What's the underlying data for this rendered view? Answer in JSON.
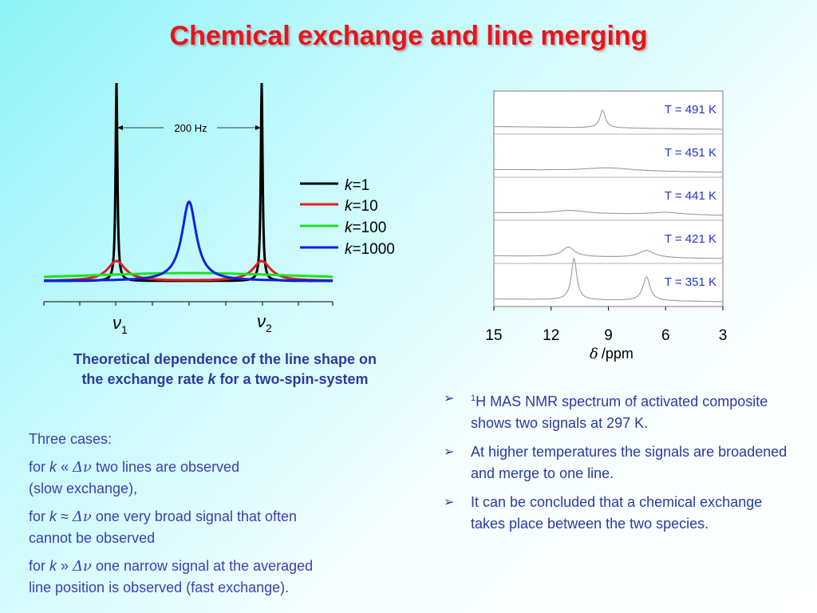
{
  "title": "Chemical exchange and line merging",
  "left_plot": {
    "dist_label": "200 Hz",
    "nu1": "ν",
    "nu1_sub": "1",
    "nu2": "ν",
    "nu2_sub": "2",
    "legend": [
      {
        "k": "k",
        "value": "=1",
        "color": "#000000"
      },
      {
        "k": "k",
        "value": "=10",
        "color": "#e02020"
      },
      {
        "k": "k",
        "value": "=100",
        "color": "#20e020"
      },
      {
        "k": "k",
        "value": "=1000",
        "color": "#1020e0"
      }
    ]
  },
  "caption": {
    "line1": "Theoretical dependence of the line shape on",
    "line2a": "the exchange rate ",
    "line2k": "k",
    "line2b": " for a two-spin-system"
  },
  "cases": {
    "header": "Three cases:",
    "c1a": "for ",
    "c1k": "k",
    "c1b": " « ",
    "c1dn": "Δν",
    "c1c": "  two lines are observed",
    "c1d": "(slow exchange),",
    "c2a": "for ",
    "c2k": "k",
    "c2b": " ≈ ",
    "c2dn": "Δν",
    "c2c": "  one very broad signal that often",
    "c2d": "cannot be observed",
    "c3a": "for ",
    "c3k": "k",
    "c3b": " » ",
    "c3dn": "Δν",
    "c3c": " one narrow signal at the averaged",
    "c3d": "line position is observed (fast exchange)."
  },
  "bullets": {
    "b1_sup": "1",
    "b1": "H MAS NMR spectrum of activated composite shows two signals at 297 K.",
    "b2": "At higher temperatures the signals are broadened and merge to one line.",
    "b3": "It can be concluded that a chemical exchange takes place between the two species."
  },
  "chart_data": [
    {
      "type": "line",
      "title": "",
      "xlabel": "",
      "ylabel": "",
      "x_tick_labels": [
        "ν1",
        "ν2"
      ],
      "annotations": [
        "200 Hz"
      ],
      "series": [
        {
          "name": "k=1",
          "color": "#000000",
          "positions": [
            -100,
            100
          ],
          "width": 3,
          "height": 100
        },
        {
          "name": "k=10",
          "color": "#e02020",
          "positions": [
            -100,
            100
          ],
          "width": 30,
          "height": 10
        },
        {
          "name": "k=100",
          "color": "#20e020",
          "positions": [
            0
          ],
          "width": 420,
          "height": 4
        },
        {
          "name": "k=1000",
          "color": "#1020e0",
          "positions": [
            0
          ],
          "width": 24,
          "height": 40
        }
      ],
      "legend_position": "right"
    },
    {
      "type": "line",
      "title": "",
      "xlabel_symbol": "δ",
      "xlabel": "/ppm",
      "x_tick_labels": [
        "15",
        "12",
        "9",
        "6",
        "3"
      ],
      "xlim": [
        15,
        3
      ],
      "series": [
        {
          "name": "T = 491 K",
          "peaks": [
            {
              "x": 9.3,
              "h": 22,
              "w": 0.35
            }
          ]
        },
        {
          "name": "T = 451 K",
          "peaks": [
            {
              "x": 9.0,
              "h": 4,
              "w": 3.0
            }
          ]
        },
        {
          "name": "T = 441 K",
          "peaks": [
            {
              "x": 11.0,
              "h": 4,
              "w": 2.0
            },
            {
              "x": 6.0,
              "h": 3,
              "w": 2.0
            }
          ]
        },
        {
          "name": "T = 421 K",
          "peaks": [
            {
              "x": 11.1,
              "h": 12,
              "w": 0.8
            },
            {
              "x": 7.0,
              "h": 9,
              "w": 1.0
            }
          ]
        },
        {
          "name": "T = 351 K",
          "peaks": [
            {
              "x": 10.8,
              "h": 52,
              "w": 0.35
            },
            {
              "x": 7.0,
              "h": 30,
              "w": 0.45
            }
          ]
        }
      ]
    }
  ]
}
